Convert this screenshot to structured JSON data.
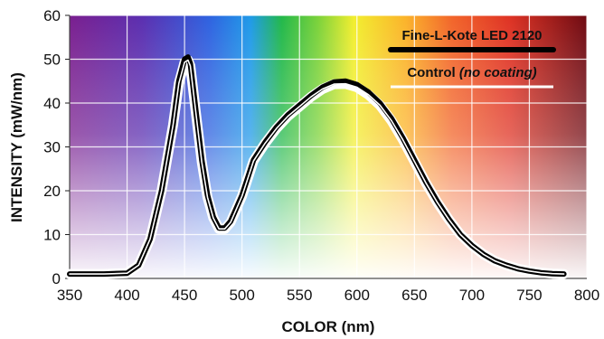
{
  "chart_data": {
    "type": "line",
    "title": "",
    "xlabel": "COLOR (nm)",
    "ylabel": "INTENSITY (mW/nm)",
    "xlim": [
      350,
      800
    ],
    "ylim": [
      0,
      60
    ],
    "x_ticks": [
      350,
      400,
      450,
      500,
      550,
      600,
      650,
      700,
      750,
      800
    ],
    "y_ticks": [
      0,
      10,
      20,
      30,
      40,
      50,
      60
    ],
    "grid": true,
    "background": "visible spectrum gradient (violet to red), fading to white at bottom",
    "legend_position": "top-right",
    "legend": {
      "entry1_label": "Fine-L-Kote LED 2120",
      "entry2_prefix": "Control ",
      "entry2_italic": "(no coating)"
    },
    "series": [
      {
        "name": "Fine-L-Kote LED 2120",
        "color": "#000000",
        "x": [
          350,
          380,
          400,
          410,
          420,
          430,
          440,
          445,
          450,
          453,
          455,
          460,
          465,
          470,
          475,
          480,
          485,
          490,
          500,
          510,
          520,
          530,
          540,
          550,
          560,
          570,
          580,
          590,
          600,
          610,
          620,
          630,
          640,
          650,
          660,
          670,
          680,
          690,
          700,
          710,
          720,
          730,
          740,
          750,
          760,
          770,
          780
        ],
        "y": [
          1,
          1,
          1.2,
          3,
          9,
          20,
          35,
          45,
          50,
          50.5,
          49,
          38,
          27,
          19,
          14,
          11.5,
          11.5,
          13,
          19,
          27,
          31,
          34.5,
          37.3,
          39.5,
          41.7,
          43.6,
          44.8,
          45,
          44.2,
          42.5,
          40,
          36.5,
          32,
          27,
          22,
          17.5,
          13.5,
          10,
          7.5,
          5.5,
          4,
          3,
          2.2,
          1.7,
          1.3,
          1.1,
          1
        ]
      },
      {
        "name": "Control (no coating)",
        "color": "#ffffff",
        "x": [
          350,
          380,
          400,
          410,
          420,
          430,
          440,
          445,
          450,
          453,
          455,
          460,
          465,
          470,
          475,
          480,
          485,
          490,
          500,
          510,
          520,
          530,
          540,
          550,
          560,
          570,
          580,
          590,
          600,
          610,
          620,
          630,
          640,
          650,
          660,
          670,
          680,
          690,
          700,
          710,
          720,
          730,
          740,
          750,
          760,
          770,
          780
        ],
        "y": [
          1,
          1,
          1.2,
          3,
          9,
          20,
          35,
          44.5,
          49.3,
          49.8,
          48.5,
          37.5,
          26.5,
          18.5,
          13.8,
          11.3,
          11.3,
          12.8,
          18.8,
          26.8,
          30.8,
          34.2,
          37,
          39.2,
          41.4,
          43.2,
          44.3,
          44.4,
          43.6,
          41.9,
          39.5,
          36,
          31.6,
          26.7,
          21.8,
          17.3,
          13.4,
          10,
          7.5,
          5.5,
          4,
          3,
          2.2,
          1.7,
          1.3,
          1.1,
          1
        ]
      }
    ]
  }
}
